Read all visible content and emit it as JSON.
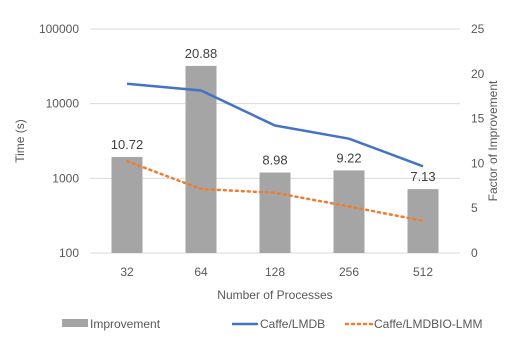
{
  "chart_data": {
    "type": "bar",
    "categories": [
      "32",
      "64",
      "128",
      "256",
      "512"
    ],
    "xlabel": "Number of Processes",
    "ylabel_left": "Time (s)",
    "ylabel_right": "Factor of Improvement",
    "left_axis": {
      "scale": "log",
      "ylim": [
        100,
        100000
      ],
      "ticks": [
        "100",
        "1000",
        "10000",
        "100000"
      ]
    },
    "right_axis": {
      "scale": "linear",
      "ylim": [
        0,
        25
      ],
      "ticks": [
        "0",
        "5",
        "10",
        "15",
        "20",
        "25"
      ]
    },
    "grid": "horizontal",
    "legend_position": "bottom",
    "series": [
      {
        "name": "Improvement",
        "kind": "bar",
        "axis": "right",
        "color": "#a5a5a5",
        "values": [
          10.72,
          20.88,
          8.98,
          9.22,
          7.13
        ],
        "labels": [
          "10.72",
          "20.88",
          "8.98",
          "9.22",
          "7.13"
        ]
      },
      {
        "name": "Caffe/LMDB",
        "kind": "line",
        "axis": "left",
        "color": "#4472c4",
        "style": "solid",
        "values": [
          18500,
          15000,
          5100,
          3400,
          1450
        ]
      },
      {
        "name": "Caffe/LMDBIO-LMM",
        "kind": "line",
        "axis": "left",
        "color": "#ed7d31",
        "style": "dotted",
        "values": [
          1700,
          720,
          640,
          420,
          270
        ]
      }
    ]
  }
}
